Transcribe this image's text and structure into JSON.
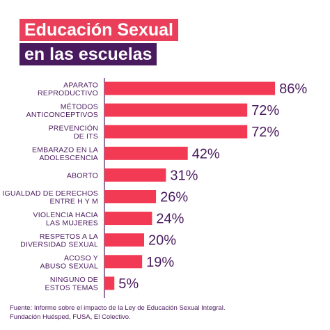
{
  "title": {
    "line1": "Educación Sexual",
    "line2": "en las escuelas"
  },
  "colors": {
    "bar": "#f23a55",
    "text": "#4a1a5e",
    "title_bg_1": "#ea3f5a",
    "title_bg_2": "#4a1a5e",
    "axis": "#4a1a5e"
  },
  "chart_data": {
    "type": "bar",
    "orientation": "horizontal",
    "categories": [
      [
        "APARATO",
        "REPRODUCTIVO"
      ],
      [
        "MÉTODOS",
        "ANTICONCEPTIVOS"
      ],
      [
        "PREVENCIÓN",
        "DE ITS"
      ],
      [
        "EMBARAZO EN LA",
        "ADOLESCENCIA"
      ],
      [
        "ABORTO"
      ],
      [
        "IGUALDAD DE DERECHOS",
        "ENTRE H Y M"
      ],
      [
        "VIOLENCIA HACIA",
        "LAS MUJERES"
      ],
      [
        "RESPETOS A LA",
        "DIVERSIDAD SEXUAL"
      ],
      [
        "ACOSO Y",
        "ABUSO SEXUAL"
      ],
      [
        "NINGUNO DE",
        "ESTOS TEMAS"
      ]
    ],
    "values": [
      86,
      72,
      72,
      42,
      31,
      26,
      24,
      20,
      19,
      5
    ],
    "value_labels": [
      "86%",
      "72%",
      "72%",
      "42%",
      "31%",
      "26%",
      "24%",
      "20%",
      "19%",
      "5%"
    ],
    "xlim": [
      0,
      100
    ],
    "grid": false,
    "legend": "none"
  },
  "source": {
    "line1": "Fuente: Informe sobre el impacto de la Ley de Educación Sexual Integral.",
    "line2": "Fundación Huésped, FUSA, El Colectivo."
  }
}
